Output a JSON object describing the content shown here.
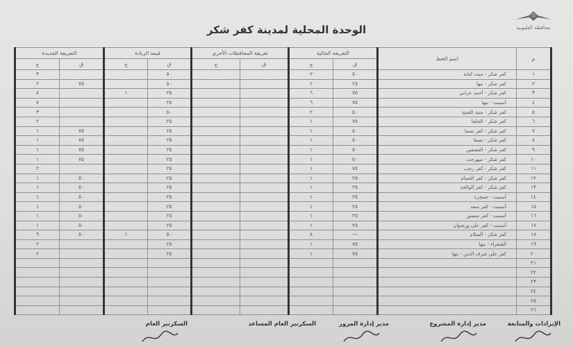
{
  "logo": {
    "text": "محافظة القليوبية",
    "icon": "logo-emblem"
  },
  "title": "الوحدة المحلية لمدينة كفر شكر",
  "table": {
    "headers": {
      "num": "م",
      "line": "اسم الخط",
      "current": "التعريفة الحالية",
      "other": "تعريفة المحافظات الأخرى",
      "increase": "قيمة الزيادة",
      "new": "التعريفة الجديدة",
      "piaster": "ق",
      "pound": "ج"
    },
    "rows": [
      {
        "n": "١",
        "name": "كفر شكر - ميت كنانة",
        "cq": "٥٠",
        "cj": "٢",
        "oq": "",
        "oj": "",
        "iq": "٥٠",
        "ij": "",
        "nq": "",
        "nj": "٣"
      },
      {
        "n": "٢",
        "name": "كفر شكر - بنها",
        "cq": "٢٥",
        "cj": "٢",
        "oq": "",
        "oj": "",
        "iq": "٥٠",
        "ij": "",
        "nq": "٧٥",
        "nj": "٢"
      },
      {
        "n": "٣",
        "name": "كفر شكر - أحمد عرابي",
        "cq": "٧٥",
        "cj": "٦",
        "oq": "",
        "oj": "",
        "iq": "٢٥",
        "ij": "١",
        "nq": "",
        "nj": "٨"
      },
      {
        "n": "٤",
        "name": "أسنيت - بنها",
        "cq": "٧٥",
        "cj": "٦",
        "oq": "",
        "oj": "",
        "iq": "٢٥",
        "ij": "",
        "nq": "",
        "nj": "٧"
      },
      {
        "n": "٥",
        "name": "كفر شكر - منية القمح",
        "cq": "٥٠",
        "cj": "٢",
        "oq": "",
        "oj": "",
        "iq": "٥٠",
        "ij": "",
        "nq": "",
        "nj": "٣"
      },
      {
        "n": "٦",
        "name": "كفر شكر - الحلفا",
        "cq": "٧٥",
        "cj": "١",
        "oq": "",
        "oj": "",
        "iq": "٢٥",
        "ij": "",
        "nq": "",
        "nj": "٢"
      },
      {
        "n": "٧",
        "name": "كفر شكر - كفر تصفا",
        "cq": "٥٠",
        "cj": "١",
        "oq": "",
        "oj": "",
        "iq": "٢٥",
        "ij": "",
        "nq": "٧٥",
        "nj": "١"
      },
      {
        "n": "٨",
        "name": "كفر شكر - تصفا",
        "cq": "٥٠",
        "cj": "١",
        "oq": "",
        "oj": "",
        "iq": "٢٥",
        "ij": "",
        "nq": "٧٥",
        "nj": "١"
      },
      {
        "n": "٩",
        "name": "كفر شكر - العصفين",
        "cq": "٥٠",
        "cj": "١",
        "oq": "",
        "oj": "",
        "iq": "٢٥",
        "ij": "",
        "nq": "٧٥",
        "nj": "١"
      },
      {
        "n": "١٠",
        "name": "كفر شكر - صهرجت",
        "cq": "٥٠",
        "cj": "١",
        "oq": "",
        "oj": "",
        "iq": "٢٥",
        "ij": "",
        "nq": "٧٥",
        "nj": "١"
      },
      {
        "n": "١١",
        "name": "كفر شكر - كفر رجب",
        "cq": "٧٥",
        "cj": "١",
        "oq": "",
        "oj": "",
        "iq": "٢٥",
        "ij": "",
        "nq": "",
        "nj": "٢"
      },
      {
        "n": "١٢",
        "name": "كفر شكر - كفر الحمام",
        "cq": "٢٥",
        "cj": "١",
        "oq": "",
        "oj": "",
        "iq": "٢٥",
        "ij": "",
        "nq": "٥٠",
        "nj": "١"
      },
      {
        "n": "١٣",
        "name": "كفر شكر - كفر الوالجة",
        "cq": "٢٥",
        "cj": "١",
        "oq": "",
        "oj": "",
        "iq": "٢٥",
        "ij": "",
        "nq": "٥٠",
        "nj": "١"
      },
      {
        "n": "١٤",
        "name": "أسنيت - جمجرة",
        "cq": "٢٥",
        "cj": "١",
        "oq": "",
        "oj": "",
        "iq": "٢٥",
        "ij": "",
        "nq": "٥٠",
        "nj": "١"
      },
      {
        "n": "١٥",
        "name": "أسنيت - كفر سعد",
        "cq": "٢٥",
        "cj": "١",
        "oq": "",
        "oj": "",
        "iq": "٢٥",
        "ij": "",
        "nq": "٥٠",
        "nj": "١"
      },
      {
        "n": "١٦",
        "name": "أسنيت - كفر منصور",
        "cq": "٢٥",
        "cj": "١",
        "oq": "",
        "oj": "",
        "iq": "٢٥",
        "ij": "",
        "nq": "٥٠",
        "nj": "١"
      },
      {
        "n": "١٧",
        "name": "أسنيت - كفر علي ورضوان",
        "cq": "٢٥",
        "cj": "١",
        "oq": "",
        "oj": "",
        "iq": "٢٥",
        "ij": "",
        "nq": "٥٠",
        "nj": "١"
      },
      {
        "n": "١٨",
        "name": "كفر شكر - السلام",
        "cq": "—",
        "cj": "٨",
        "oq": "",
        "oj": "",
        "iq": "٥٠",
        "ij": "١",
        "nq": "٥٠",
        "nj": "٩"
      },
      {
        "n": "١٩",
        "name": "الشعراء - بنها",
        "cq": "٧٥",
        "cj": "١",
        "oq": "",
        "oj": "",
        "iq": "٢٥",
        "ij": "",
        "nq": "",
        "nj": "٢"
      },
      {
        "n": "٢٠",
        "name": "كفر علي شرف الدين - بنها",
        "cq": "٧٥",
        "cj": "١",
        "oq": "",
        "oj": "",
        "iq": "٢٥",
        "ij": "",
        "nq": "",
        "nj": "٢"
      },
      {
        "n": "٢١",
        "name": "",
        "cq": "",
        "cj": "",
        "oq": "",
        "oj": "",
        "iq": "",
        "ij": "",
        "nq": "",
        "nj": ""
      },
      {
        "n": "٢٢",
        "name": "",
        "cq": "",
        "cj": "",
        "oq": "",
        "oj": "",
        "iq": "",
        "ij": "",
        "nq": "",
        "nj": ""
      },
      {
        "n": "٢٣",
        "name": "",
        "cq": "",
        "cj": "",
        "oq": "",
        "oj": "",
        "iq": "",
        "ij": "",
        "nq": "",
        "nj": ""
      },
      {
        "n": "٢٤",
        "name": "",
        "cq": "",
        "cj": "",
        "oq": "",
        "oj": "",
        "iq": "",
        "ij": "",
        "nq": "",
        "nj": ""
      },
      {
        "n": "٢٥",
        "name": "",
        "cq": "",
        "cj": "",
        "oq": "",
        "oj": "",
        "iq": "",
        "ij": "",
        "nq": "",
        "nj": ""
      },
      {
        "n": "٢٦",
        "name": "",
        "cq": "",
        "cj": "",
        "oq": "",
        "oj": "",
        "iq": "",
        "ij": "",
        "nq": "",
        "nj": ""
      }
    ]
  },
  "footer": {
    "signatories": [
      "الإيرادات والمتابعة",
      "مدير إدارة المشروع",
      "مدير إدارة المرور",
      "السكرتير العام المساعد",
      "السكرتير العام"
    ]
  }
}
